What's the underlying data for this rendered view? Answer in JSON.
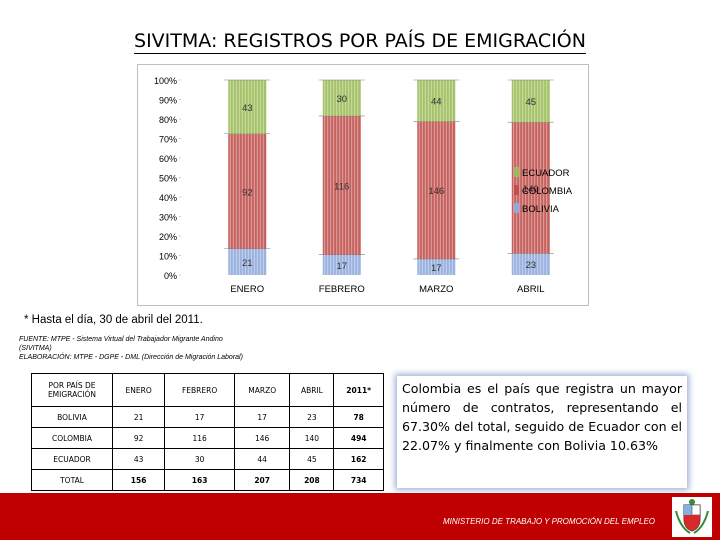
{
  "title": "SIVITMA: REGISTROS POR PAÍS DE EMIGRACIÓN",
  "chart_data": {
    "type": "bar",
    "stacked": "percent",
    "categories": [
      "ENERO",
      "FEBRERO",
      "MARZO",
      "ABRIL"
    ],
    "series": [
      {
        "name": "BOLIVIA",
        "values": [
          21,
          17,
          17,
          23
        ],
        "color": "#8faadc"
      },
      {
        "name": "COLOMBIA",
        "values": [
          92,
          116,
          146,
          140
        ],
        "color": "#c0504d"
      },
      {
        "name": "ECUADOR",
        "values": [
          43,
          30,
          44,
          45
        ],
        "color": "#9bbb59"
      }
    ],
    "yticks": [
      "0%",
      "10%",
      "20%",
      "30%",
      "40%",
      "50%",
      "60%",
      "70%",
      "80%",
      "90%",
      "100%"
    ],
    "ylim": [
      0,
      100
    ],
    "legend": [
      "ECUADOR",
      "COLOMBIA",
      "BOLIVIA"
    ],
    "legend_position": "right"
  },
  "note": "* Hasta el día, 30 de abril del 2011.",
  "source": {
    "line1": "FUENTE: MTPE - Sistema Virtual del Trabajador Migrante Andino",
    "line2": "(SIVITMA)",
    "line3": "ELABORACIÓN: MTPE - DGPE - DML (Dirección de Migración Laboral)"
  },
  "table": {
    "headers": [
      "POR PAÍS DE EMIGRACIÓN",
      "ENERO",
      "FEBRERO",
      "MARZO",
      "ABRIL",
      "2011*"
    ],
    "rows": [
      [
        "BOLIVIA",
        "21",
        "17",
        "17",
        "23",
        "78"
      ],
      [
        "COLOMBIA",
        "92",
        "116",
        "146",
        "140",
        "494"
      ],
      [
        "ECUADOR",
        "43",
        "30",
        "44",
        "45",
        "162"
      ],
      [
        "TOTAL",
        "156",
        "163",
        "207",
        "208",
        "734"
      ]
    ]
  },
  "conclusion": "Colombia es el país que registra un mayor número de contratos, representando el 67.30% del total, seguido de Ecuador con el 22.07% y finalmente con Bolivia 10.63%",
  "footer": {
    "ministry": "MINISTERIO DE TRABAJO Y PROMOCIÓN DEL EMPLEO"
  }
}
